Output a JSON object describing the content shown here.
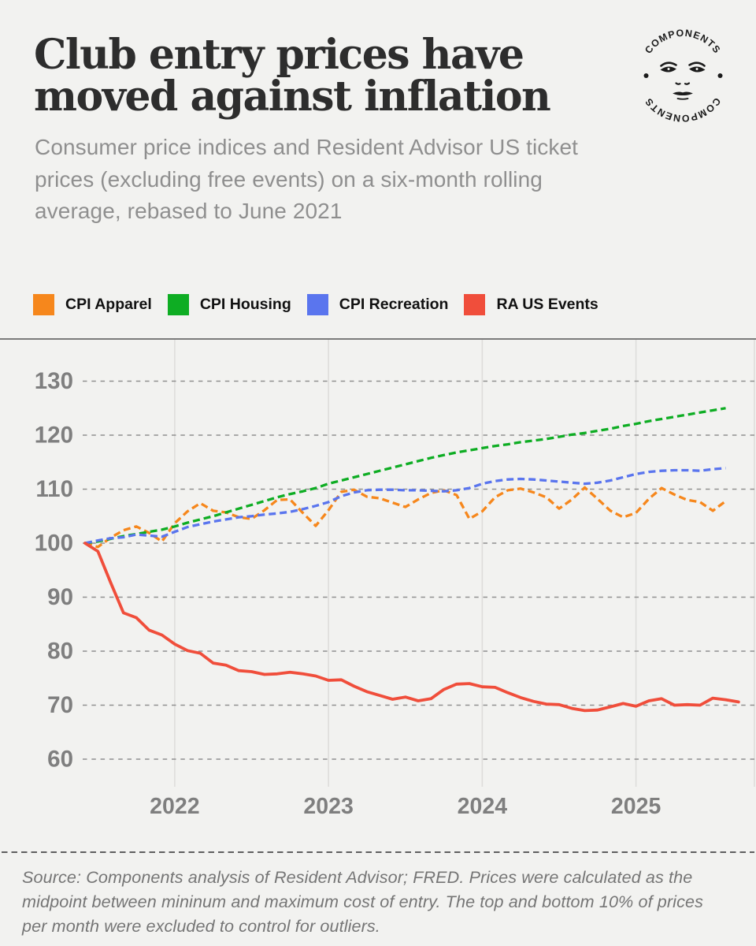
{
  "page": {
    "background": "#f2f2f0",
    "text_colors": {
      "title": "#2d2d2d",
      "subtitle": "#8f8f8f",
      "ticks": "#7f7f7f",
      "legend": "#111111",
      "footer": "#757575"
    }
  },
  "header": {
    "title_lines": [
      "Club entry prices have",
      "moved against inflation"
    ],
    "subtitle_lines": [
      "Consumer price indices and Resident Advisor US ticket",
      "prices (excluding free events) on a six-month rolling",
      "average, rebased to June 2021"
    ],
    "logo": {
      "ring_text_top": "COMPONENTS",
      "ring_text_bottom": "COMPONENTS"
    }
  },
  "legend": [
    {
      "label": "CPI Apparel",
      "color": "#F6871C"
    },
    {
      "label": "CPI Housing",
      "color": "#0EAD23"
    },
    {
      "label": "CPI Recreation",
      "color": "#5A75EE"
    },
    {
      "label": "RA US Events",
      "color": "#F04E3B"
    }
  ],
  "chart_data": {
    "type": "line",
    "title": "Club entry prices have moved against inflation",
    "subtitle": "Consumer price indices and Resident Advisor US ticket prices (excluding free events) on a six-month rolling average, rebased to June 2021",
    "x_start": "2021-06",
    "x_step": "month",
    "x_ticks": [
      {
        "label": "2022",
        "month_index": 7
      },
      {
        "label": "2023",
        "month_index": 19
      },
      {
        "label": "2024",
        "month_index": 31
      },
      {
        "label": "2025",
        "month_index": 43
      }
    ],
    "y_ticks": [
      60,
      70,
      80,
      90,
      100,
      110,
      120,
      130
    ],
    "ylim": [
      55,
      136
    ],
    "grid": {
      "horizontal": "dashed",
      "vertical": "solid-light"
    },
    "legend_position": "top",
    "series": [
      {
        "name": "CPI Apparel",
        "color": "#F6871C",
        "style": "dashed",
        "values": [
          100.0,
          99.3,
          101.0,
          102.4,
          103.1,
          101.9,
          100.3,
          103.7,
          105.9,
          107.4,
          106.0,
          105.7,
          104.8,
          104.5,
          106.1,
          108.0,
          108.1,
          105.6,
          103.2,
          106.1,
          109.5,
          109.9,
          108.6,
          108.3,
          107.5,
          106.7,
          108.1,
          109.3,
          109.8,
          108.9,
          104.5,
          105.9,
          108.5,
          109.8,
          110.1,
          109.4,
          108.5,
          106.4,
          108.1,
          110.3,
          108.2,
          106.0,
          104.8,
          105.6,
          108.2,
          110.2,
          109.0,
          108.0,
          107.6,
          106.0,
          107.8
        ]
      },
      {
        "name": "CPI Housing",
        "color": "#0EAD23",
        "style": "dashed",
        "values": [
          100.0,
          100.3,
          100.8,
          101.3,
          101.7,
          102.1,
          102.5,
          103.1,
          103.8,
          104.4,
          105.0,
          105.7,
          106.4,
          107.1,
          107.8,
          108.5,
          109.1,
          109.6,
          110.2,
          111.0,
          111.6,
          112.2,
          112.8,
          113.4,
          114.0,
          114.6,
          115.2,
          115.8,
          116.3,
          116.8,
          117.2,
          117.6,
          118.0,
          118.3,
          118.7,
          119.0,
          119.3,
          119.7,
          120.1,
          120.4,
          120.8,
          121.2,
          121.7,
          122.1,
          122.6,
          123.0,
          123.4,
          123.8,
          124.2,
          124.6,
          125.0
        ]
      },
      {
        "name": "CPI Recreation",
        "color": "#5A75EE",
        "style": "dashed",
        "values": [
          100.0,
          100.5,
          100.9,
          101.1,
          101.6,
          101.4,
          101.2,
          102.1,
          103.0,
          103.5,
          104.0,
          104.4,
          104.8,
          105.0,
          105.3,
          105.5,
          105.8,
          106.3,
          106.9,
          107.6,
          108.7,
          109.4,
          109.8,
          109.9,
          109.9,
          109.8,
          109.8,
          109.7,
          109.6,
          109.8,
          110.2,
          111.0,
          111.5,
          111.8,
          111.9,
          111.8,
          111.6,
          111.4,
          111.2,
          111.0,
          111.2,
          111.6,
          112.2,
          112.8,
          113.2,
          113.4,
          113.5,
          113.5,
          113.4,
          113.7,
          113.9
        ]
      },
      {
        "name": "RA US Events",
        "color": "#F04E3B",
        "style": "solid",
        "values": [
          100.0,
          98.5,
          92.7,
          87.1,
          86.2,
          83.9,
          83.0,
          81.3,
          80.1,
          79.6,
          77.8,
          77.4,
          76.4,
          76.2,
          75.7,
          75.8,
          76.1,
          75.8,
          75.4,
          74.6,
          74.7,
          73.5,
          72.5,
          71.8,
          71.1,
          71.5,
          70.8,
          71.2,
          72.9,
          73.9,
          74.0,
          73.4,
          73.3,
          72.3,
          71.4,
          70.7,
          70.2,
          70.1,
          69.4,
          69.0,
          69.1,
          69.7,
          70.3,
          69.8,
          70.8,
          71.2,
          70.0,
          70.1,
          70.0,
          71.3,
          71.0,
          70.6
        ]
      }
    ]
  },
  "footer": {
    "lines": [
      "Source: Components analysis of Resident Advisor; FRED. Prices were calculated as the",
      "midpoint between mininum and maximum cost of entry. The top and bottom 10% of prices",
      "per month were excluded to control for outliers."
    ]
  }
}
